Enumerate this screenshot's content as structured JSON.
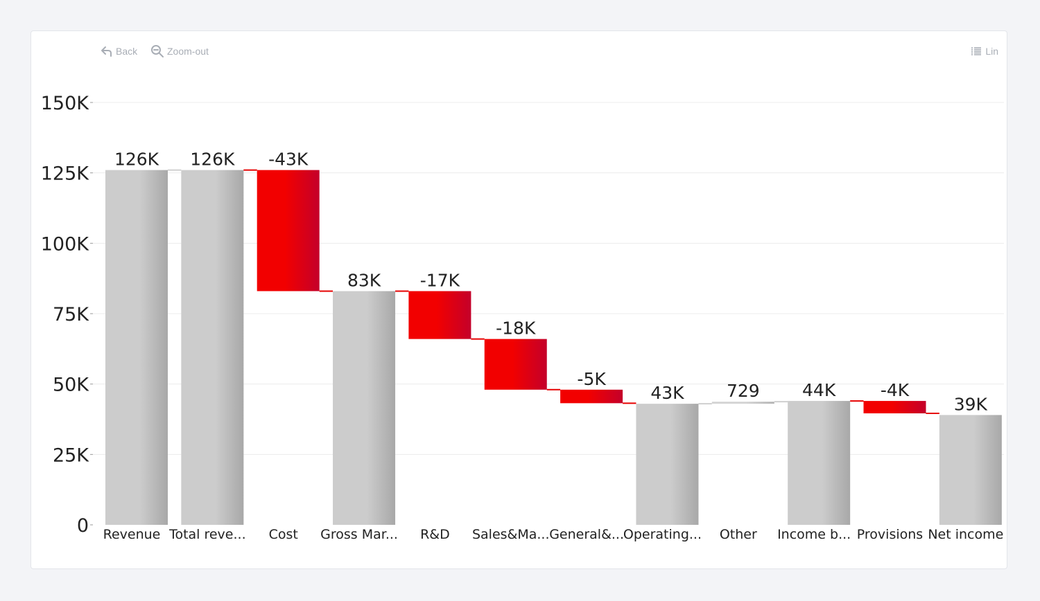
{
  "toolbar": {
    "back_label": "Back",
    "zoom_label": "Zoom-out",
    "scale_label": "Lin"
  },
  "chart_data": {
    "type": "bar",
    "subtype": "waterfall",
    "categories": [
      "Revenue",
      "Total reve...",
      "Cost",
      "Gross Mar...",
      "R&D",
      "Sales&Ma...",
      "General&...",
      "Operating...",
      "Other",
      "Income b...",
      "Provisions",
      "Net income"
    ],
    "values": [
      126000,
      126000,
      -43000,
      83000,
      -17000,
      -18000,
      -4800,
      43000,
      729,
      44000,
      -4400,
      39000
    ],
    "kinds": [
      "total",
      "total",
      "delta",
      "total",
      "delta",
      "delta",
      "delta",
      "total",
      "delta",
      "total",
      "delta",
      "total"
    ],
    "data_labels": [
      "126K",
      "126K",
      "-43K",
      "83K",
      "-17K",
      "-18K",
      "-5K",
      "43K",
      "729",
      "44K",
      "-4K",
      "39K"
    ],
    "y_ticks": [
      0,
      25000,
      50000,
      75000,
      100000,
      125000,
      150000
    ],
    "y_tick_labels": [
      "0",
      "25K",
      "50K",
      "75K",
      "100K",
      "125K",
      "150K"
    ],
    "ylim": [
      0,
      150000
    ],
    "grid": true,
    "colors": {
      "total_light": "#cccccc",
      "total_dark": "#a8a8a8",
      "increase_light": "#d4d4d4",
      "increase_dark": "#b4b4b4",
      "decrease_light": "#f20000",
      "decrease_dark": "#c4002a"
    }
  }
}
